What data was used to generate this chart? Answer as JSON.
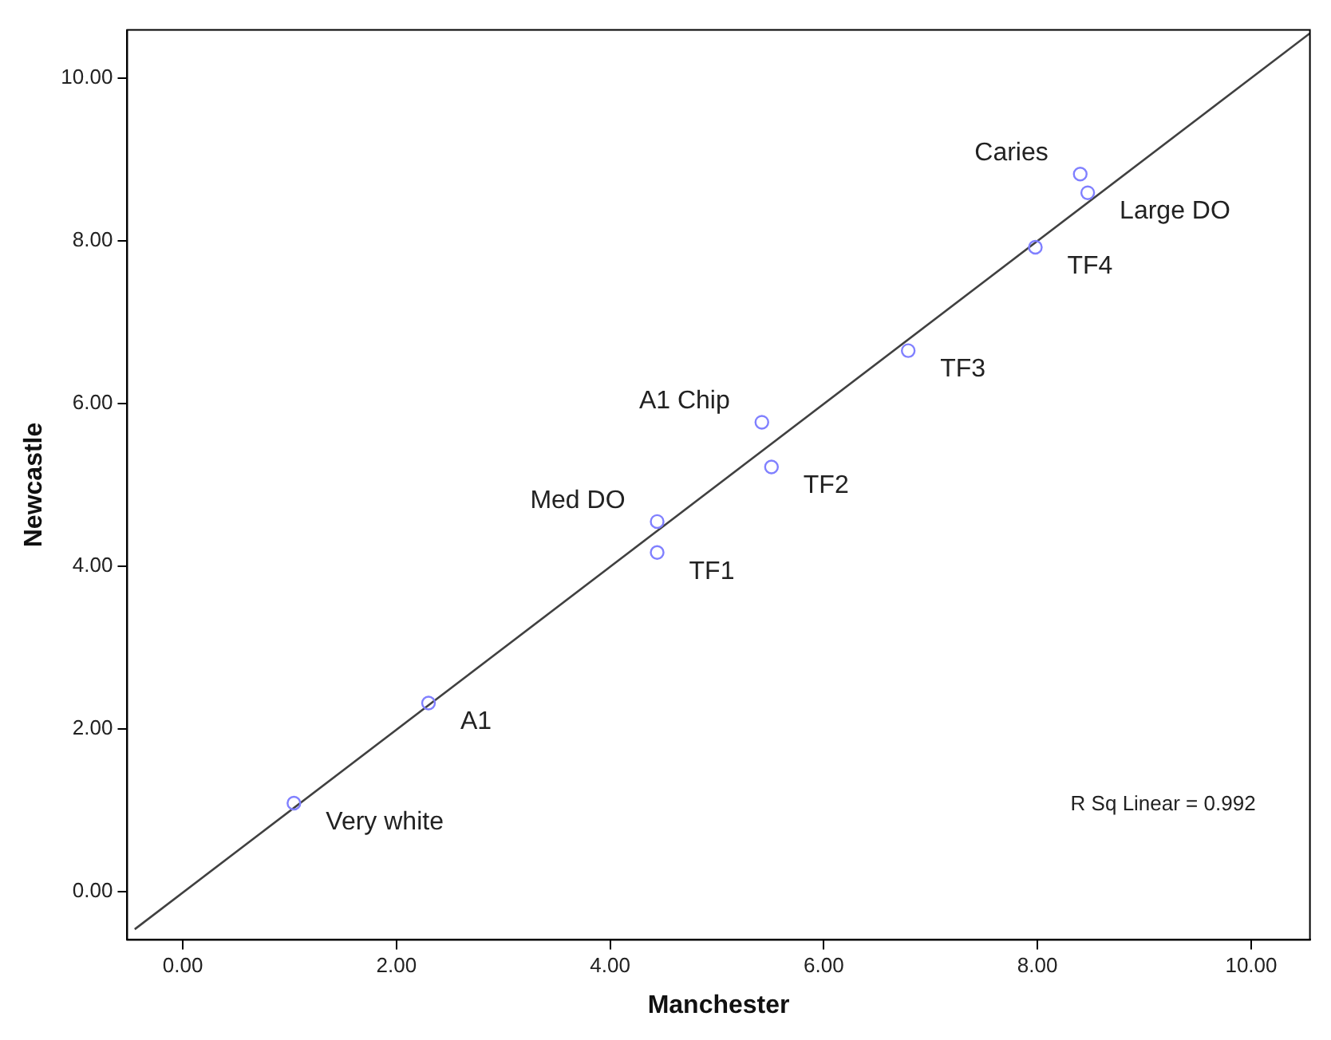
{
  "chart_data": {
    "type": "scatter",
    "xlabel": "Manchester",
    "ylabel": "Newcastle",
    "xlim": [
      -0.52,
      10.55
    ],
    "ylim": [
      -0.59,
      10.59
    ],
    "xticks": [
      {
        "value": 0,
        "label": "0.00"
      },
      {
        "value": 2,
        "label": "2.00"
      },
      {
        "value": 4,
        "label": "4.00"
      },
      {
        "value": 6,
        "label": "6.00"
      },
      {
        "value": 8,
        "label": "8.00"
      },
      {
        "value": 10,
        "label": "10.00"
      }
    ],
    "yticks": [
      {
        "value": 0,
        "label": "0.00"
      },
      {
        "value": 2,
        "label": "2.00"
      },
      {
        "value": 4,
        "label": "4.00"
      },
      {
        "value": 6,
        "label": "6.00"
      },
      {
        "value": 8,
        "label": "8.00"
      },
      {
        "value": 10,
        "label": "10.00"
      }
    ],
    "grid": false,
    "legend": false,
    "series": [
      {
        "marker": "circle",
        "color": "#8080ff",
        "x": [
          1.04,
          2.3,
          4.44,
          4.44,
          5.42,
          5.51,
          6.79,
          7.98,
          8.4,
          8.47
        ],
        "values": [
          1.09,
          2.32,
          4.17,
          4.55,
          5.77,
          5.22,
          6.65,
          7.92,
          8.82,
          8.59
        ]
      },
      {
        "type": "line",
        "color": "#404040",
        "x": [
          -0.45,
          10.55
        ],
        "values": [
          -0.46,
          10.55
        ]
      }
    ],
    "annotations": [
      {
        "text": "Very white",
        "x": 1.04,
        "y": 1.09
      },
      {
        "text": "A1",
        "x": 2.3,
        "y": 2.32
      },
      {
        "text": "TF1",
        "x": 4.44,
        "y": 4.17
      },
      {
        "text": "Med DO",
        "x": 4.44,
        "y": 4.55
      },
      {
        "text": "A1 Chip",
        "x": 5.42,
        "y": 5.77
      },
      {
        "text": "TF2",
        "x": 5.51,
        "y": 5.22
      },
      {
        "text": "TF3",
        "x": 6.79,
        "y": 6.65
      },
      {
        "text": "TF4",
        "x": 7.98,
        "y": 7.92
      },
      {
        "text": "Caries",
        "x": 8.4,
        "y": 8.82
      },
      {
        "text": "Large DO",
        "x": 8.47,
        "y": 8.59
      },
      "R Sq Linear = 0.992"
    ]
  }
}
